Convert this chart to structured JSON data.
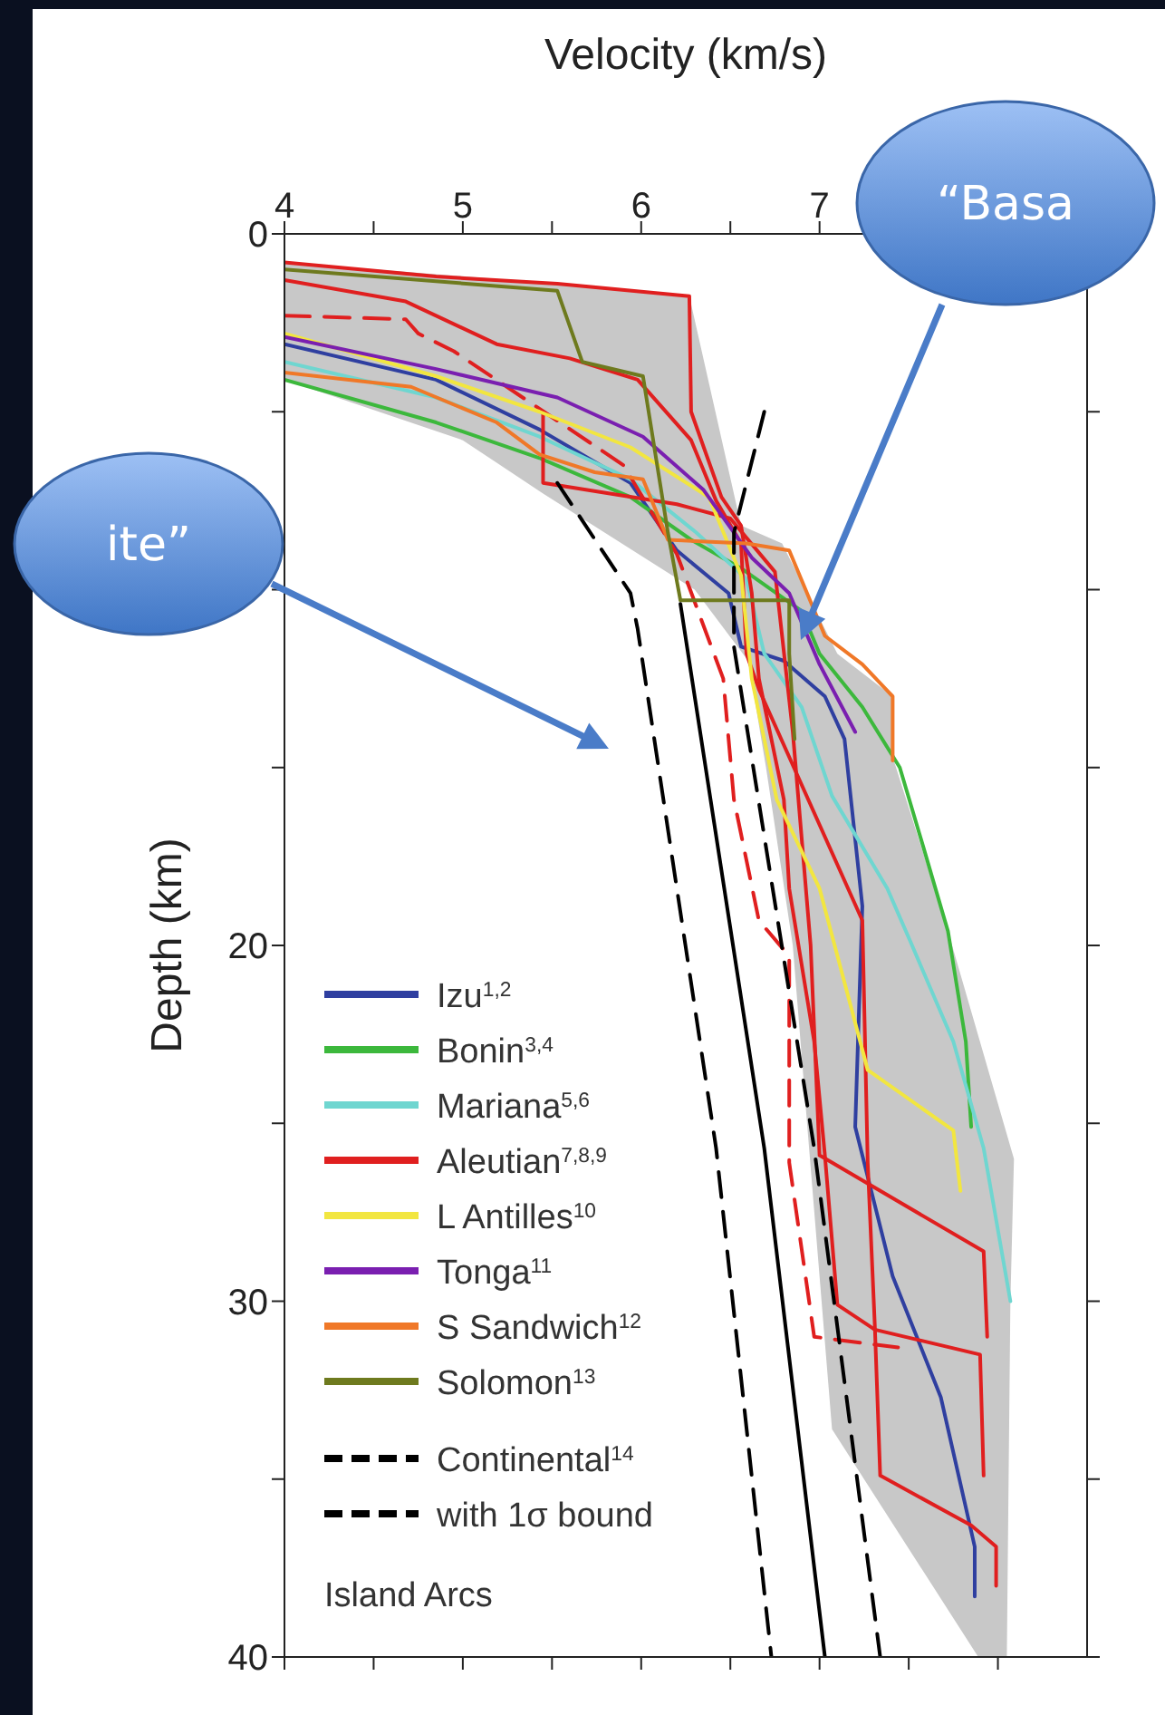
{
  "chart_data": {
    "type": "line",
    "xlabel": "Velocity (km/s)",
    "ylabel": "Depth (km)",
    "xlim": [
      4,
      8.5
    ],
    "xticks": [
      4,
      {
        "value": 4.5,
        "label": null
      },
      5,
      {
        "value": 5.5,
        "label": null
      },
      6,
      {
        "value": 6.5,
        "label": null
      },
      7,
      {
        "value": 7.5,
        "label": null
      },
      {
        "value": 8,
        "label": null
      }
    ],
    "ylim": [
      40,
      0
    ],
    "yticks": [
      0,
      {
        "value": 5,
        "label": null
      },
      {
        "value": 10,
        "label": null
      },
      {
        "value": 15,
        "label": null
      },
      20,
      {
        "value": 25,
        "label": null
      },
      30,
      {
        "value": 35,
        "label": null
      },
      40
    ],
    "legend": "bottom left",
    "marker": "none",
    "line_style": "solid",
    "annotations": [
      "Island Arcs",
      "“Basa",
      "ite”"
    ],
    "series": [
      {
        "type": "area",
        "color": "#c8c8c8",
        "x": [
          4,
          5.53,
          6.27,
          6.56,
          6.79,
          7.1,
          7.41,
          7.41,
          7.72,
          8.09,
          8.07,
          8.05,
          7.89,
          7.07,
          6.93,
          6.85,
          6.7,
          6.6,
          6.3,
          5.45,
          5.0,
          4
        ],
        "values": [
          0.8,
          1.4,
          1.75,
          8.2,
          8.7,
          11.8,
          13,
          14.7,
          19.6,
          26,
          30,
          40,
          40,
          33.6,
          25,
          20,
          15,
          12,
          10,
          7.3,
          5.8,
          4.1
        ]
      },
      {
        "name": "Izu$^{1,2}$",
        "color": "#2f3fa0",
        "x": [
          4,
          4.85,
          5.43,
          5.94,
          6.2,
          6.49,
          6.56,
          6.8,
          7.03,
          7.14,
          7.24,
          7.2,
          7.41,
          7.68,
          7.87,
          7.87
        ],
        "values": [
          3.1,
          4.1,
          5.5,
          7.0,
          8.9,
          10.1,
          11.6,
          12.0,
          13.0,
          14.2,
          18.9,
          25.1,
          29.3,
          32.7,
          36.9,
          38.3
        ]
      },
      {
        "name": "Bonin$^{3,4}$",
        "color": "#3cb83c",
        "x": [
          4,
          4.85,
          5.43,
          5.94,
          6.28,
          6.56,
          6.9,
          7.0,
          7.24,
          7.45,
          7.58,
          7.72,
          7.82,
          7.85
        ],
        "values": [
          4.1,
          5.3,
          6.3,
          7.4,
          8.6,
          9.4,
          10.6,
          11.8,
          13.3,
          15.0,
          17.2,
          19.6,
          22.7,
          25.1
        ]
      },
      {
        "name": "Mariana$^{5,6}$",
        "color": "#6fd6d0",
        "x": [
          4,
          4.85,
          5.43,
          5.94,
          6.31,
          6.59,
          6.69,
          6.9,
          7.07,
          7.38,
          7.51,
          7.75,
          7.92,
          8.07
        ],
        "values": [
          3.6,
          4.6,
          5.7,
          6.9,
          8.4,
          9.7,
          11.8,
          13.3,
          15.8,
          18.4,
          19.9,
          22.7,
          25.7,
          30.0
        ]
      },
      {
        "name": "Aleutian$^{7,8,9}$",
        "color": "#e01f1f",
        "x": [
          4,
          4.85,
          5.53,
          6.27,
          6.28,
          6.45,
          6.56,
          6.62,
          6.66,
          6.8,
          6.83,
          6.97,
          7.03,
          7.1,
          7.31,
          7.9,
          7.92
        ],
        "values": [
          0.8,
          1.2,
          1.4,
          1.75,
          5.0,
          7.4,
          8.2,
          10.1,
          12.5,
          15.9,
          18.4,
          22.7,
          25.9,
          30.1,
          30.8,
          31.5,
          34.9
        ]
      },
      {
        "color": "#e01f1f",
        "x": [
          4,
          4.68,
          5.19,
          5.6,
          5.98,
          6.28,
          6.42,
          6.56,
          6.59,
          6.66,
          7.24,
          7.27,
          7.31,
          7.34,
          7.85,
          7.99,
          7.99
        ],
        "values": [
          1.3,
          1.9,
          3.1,
          3.5,
          4.1,
          5.8,
          7.5,
          8.7,
          11.8,
          12.8,
          19.3,
          26.1,
          30.7,
          34.9,
          36.3,
          36.9,
          38.0
        ]
      },
      {
        "color": "#e01f1f",
        "x": [
          5.45,
          5.45,
          6.2,
          6.5,
          6.75,
          6.85,
          6.95,
          7.0,
          7.92,
          7.94
        ],
        "values": [
          5.0,
          7.0,
          7.6,
          8.0,
          9.5,
          14,
          20,
          25.9,
          28.6,
          31.0
        ]
      },
      {
        "color": "#e01f1f",
        "line_style": "dashed",
        "x": [
          4,
          4.68,
          4.75,
          4.95,
          5.9,
          6.2,
          6.46,
          6.52,
          6.66,
          6.83,
          6.83,
          6.97,
          7.44
        ],
        "values": [
          2.3,
          2.4,
          2.8,
          3.3,
          6.5,
          9,
          12.5,
          15.9,
          19.3,
          20.3,
          26.1,
          31.0,
          31.3
        ]
      },
      {
        "name": "L Antilles$^{10}$",
        "color": "#f2e640",
        "x": [
          4,
          4.85,
          5.43,
          5.94,
          6.38,
          6.56,
          6.62,
          6.76,
          7.0,
          7.27,
          7.75,
          7.79
        ],
        "values": [
          2.8,
          4.0,
          5.0,
          6.0,
          7.4,
          9.6,
          12.5,
          15.9,
          18.4,
          23.5,
          25.2,
          26.9
        ]
      },
      {
        "name": "Tonga$^{11}$",
        "color": "#7a1fb0",
        "x": [
          4,
          4.85,
          5.53,
          6.01,
          6.35,
          6.62,
          6.83,
          7.0,
          7.2
        ],
        "values": [
          2.9,
          3.8,
          4.6,
          5.7,
          7.2,
          9.1,
          10.1,
          12.1,
          14.0
        ]
      },
      {
        "name": "S Sandwich$^{12}$",
        "color": "#f07828",
        "x": [
          4,
          4.71,
          5.19,
          5.43,
          5.74,
          6.01,
          6.15,
          6.59,
          6.83,
          7.03,
          7.24,
          7.41,
          7.41
        ],
        "values": [
          3.9,
          4.3,
          5.3,
          6.2,
          6.7,
          6.9,
          8.6,
          8.7,
          8.9,
          11.3,
          12.1,
          13.0,
          14.8
        ]
      },
      {
        "name": "Solomon$^{13}$",
        "color": "#6e7a1e",
        "x": [
          4,
          5.53,
          5.67,
          6.01,
          6.15,
          6.22,
          6.83,
          6.83,
          6.86
        ],
        "values": [
          1.0,
          1.6,
          3.6,
          4.0,
          8.4,
          10.3,
          10.3,
          11.8,
          14.2
        ]
      },
      {
        "name": "Continental$^{14}$",
        "color": "#000000",
        "line_style": "dashed",
        "x": [
          5.53,
          5.94,
          5.98,
          6.42,
          6.73
        ],
        "values": [
          7.0,
          10.1,
          11.1,
          25.7,
          40
        ]
      },
      {
        "color": "#000000",
        "x": [
          6.22,
          6.69,
          7.03
        ],
        "values": [
          10.4,
          25.7,
          40
        ]
      },
      {
        "name": "with 1σ bound",
        "color": "#000000",
        "line_style": "dashed",
        "x": [
          6.69,
          6.52,
          6.52,
          6.97,
          7.34
        ],
        "values": [
          5.0,
          8.4,
          11.6,
          25.7,
          40
        ]
      }
    ]
  }
}
